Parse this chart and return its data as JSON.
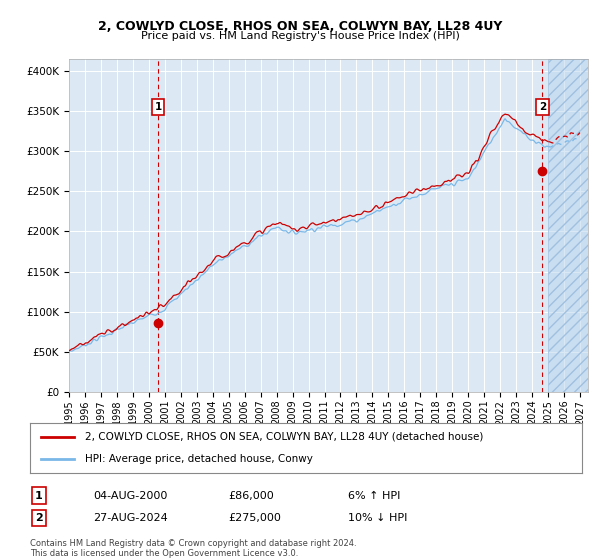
{
  "title": "2, COWLYD CLOSE, RHOS ON SEA, COLWYN BAY, LL28 4UY",
  "subtitle": "Price paid vs. HM Land Registry's House Price Index (HPI)",
  "ylabel_ticks": [
    "£0",
    "£50K",
    "£100K",
    "£150K",
    "£200K",
    "£250K",
    "£300K",
    "£350K",
    "£400K"
  ],
  "ytick_values": [
    0,
    50000,
    100000,
    150000,
    200000,
    250000,
    300000,
    350000,
    400000
  ],
  "ylim": [
    0,
    415000
  ],
  "xlim_start": 1995.0,
  "xlim_end": 2027.5,
  "xticks": [
    1995,
    1996,
    1997,
    1998,
    1999,
    2000,
    2001,
    2002,
    2003,
    2004,
    2005,
    2006,
    2007,
    2008,
    2009,
    2010,
    2011,
    2012,
    2013,
    2014,
    2015,
    2016,
    2017,
    2018,
    2019,
    2020,
    2021,
    2022,
    2023,
    2024,
    2025,
    2026,
    2027
  ],
  "bg_color": "#dce9f5",
  "hpi_color": "#7ab8e8",
  "price_color": "#cc0000",
  "sale1_date": 2000.59,
  "sale1_price": 86000,
  "sale2_date": 2024.65,
  "sale2_price": 275000,
  "legend_line1": "2, COWLYD CLOSE, RHOS ON SEA, COLWYN BAY, LL28 4UY (detached house)",
  "legend_line2": "HPI: Average price, detached house, Conwy",
  "annotation1_date": "04-AUG-2000",
  "annotation1_price": "£86,000",
  "annotation1_hpi": "6% ↑ HPI",
  "annotation2_date": "27-AUG-2024",
  "annotation2_price": "£275,000",
  "annotation2_hpi": "10% ↓ HPI",
  "footer": "Contains HM Land Registry data © Crown copyright and database right 2024.\nThis data is licensed under the Open Government Licence v3.0.",
  "future_start": 2025.0
}
